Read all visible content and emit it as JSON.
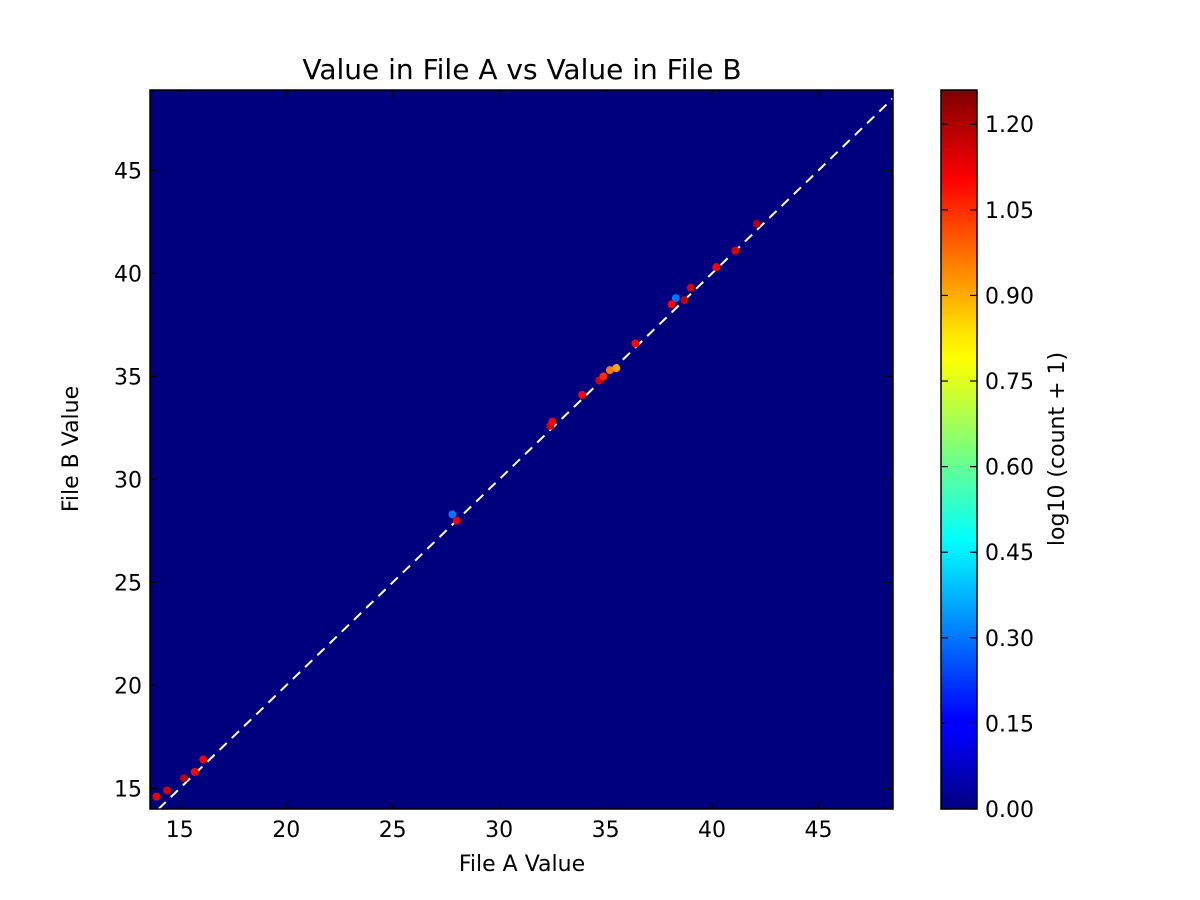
{
  "chart_data": {
    "type": "heatmap",
    "title": "Value in File A vs Value in File B",
    "xlabel": "File A Value",
    "ylabel": "File B Value",
    "xlim": [
      13.6,
      48.5
    ],
    "ylim": [
      14.0,
      48.9
    ],
    "xticks": [
      "15",
      "20",
      "25",
      "30",
      "35",
      "40",
      "45"
    ],
    "xtick_values": [
      15,
      20,
      25,
      30,
      35,
      40,
      45
    ],
    "yticks": [
      "15",
      "20",
      "25",
      "30",
      "35",
      "40",
      "45"
    ],
    "ytick_values": [
      15,
      20,
      25,
      30,
      35,
      40,
      45
    ],
    "background_color": "#00007f",
    "reference_line": {
      "type": "diagonal y=x",
      "color": "#ffffff",
      "style": "dashed"
    },
    "colorbar": {
      "label": "log10 (count + 1)",
      "range": [
        0.0,
        1.26
      ],
      "ticks": [
        "0.00",
        "0.15",
        "0.30",
        "0.45",
        "0.60",
        "0.75",
        "0.90",
        "1.05",
        "1.20"
      ],
      "tick_values": [
        0.0,
        0.15,
        0.3,
        0.45,
        0.6,
        0.75,
        0.9,
        1.05,
        1.2
      ],
      "colormap": "jet"
    },
    "points": [
      {
        "x": 13.9,
        "y": 14.6,
        "v": 1.12
      },
      {
        "x": 14.4,
        "y": 14.9,
        "v": 1.15
      },
      {
        "x": 15.2,
        "y": 15.5,
        "v": 1.18
      },
      {
        "x": 15.7,
        "y": 15.8,
        "v": 1.1
      },
      {
        "x": 16.1,
        "y": 16.4,
        "v": 1.12
      },
      {
        "x": 27.8,
        "y": 28.3,
        "v": 0.3
      },
      {
        "x": 28.0,
        "y": 28.0,
        "v": 1.12
      },
      {
        "x": 32.4,
        "y": 32.6,
        "v": 1.15
      },
      {
        "x": 32.5,
        "y": 32.8,
        "v": 1.1
      },
      {
        "x": 33.9,
        "y": 34.1,
        "v": 1.1
      },
      {
        "x": 34.7,
        "y": 34.8,
        "v": 1.15
      },
      {
        "x": 34.9,
        "y": 35.0,
        "v": 1.05
      },
      {
        "x": 35.2,
        "y": 35.3,
        "v": 0.95
      },
      {
        "x": 35.5,
        "y": 35.4,
        "v": 0.9
      },
      {
        "x": 36.4,
        "y": 36.6,
        "v": 1.1
      },
      {
        "x": 38.1,
        "y": 38.5,
        "v": 1.1
      },
      {
        "x": 38.3,
        "y": 38.8,
        "v": 0.3
      },
      {
        "x": 38.7,
        "y": 38.7,
        "v": 1.18
      },
      {
        "x": 39.0,
        "y": 39.3,
        "v": 1.15
      },
      {
        "x": 40.2,
        "y": 40.3,
        "v": 1.1
      },
      {
        "x": 41.1,
        "y": 41.1,
        "v": 1.15
      },
      {
        "x": 42.1,
        "y": 42.4,
        "v": 1.2
      }
    ]
  }
}
